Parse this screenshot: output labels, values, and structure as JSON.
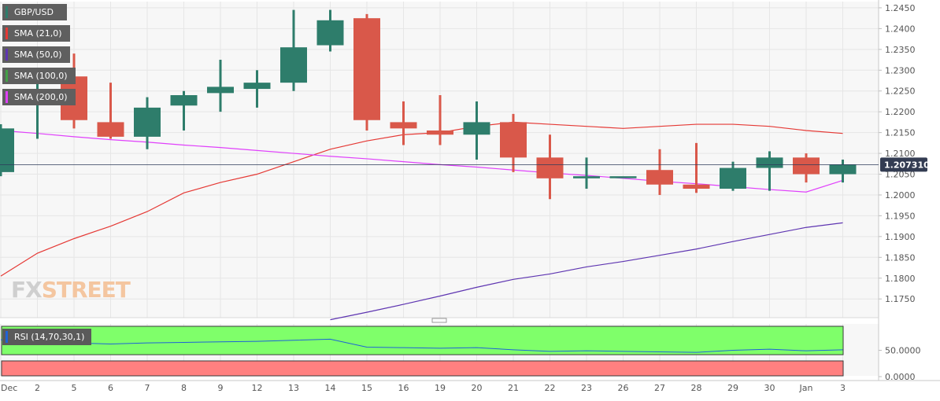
{
  "chart_data": [
    {
      "type": "candlestick",
      "symbol": "GBP/USD",
      "x_labels": [
        "Dec",
        "2",
        "5",
        "6",
        "7",
        "8",
        "9",
        "12",
        "13",
        "14",
        "15",
        "16",
        "19",
        "20",
        "21",
        "22",
        "23",
        "26",
        "27",
        "28",
        "29",
        "30",
        "Jan",
        "3"
      ],
      "candles": [
        {
          "o": 1.2055,
          "h": 1.217,
          "l": 1.2045,
          "c": 1.216
        },
        {
          "o": 1.222,
          "h": 1.227,
          "l": 1.2135,
          "c": 1.224
        },
        {
          "o": 1.2285,
          "h": 1.234,
          "l": 1.216,
          "c": 1.218
        },
        {
          "o": 1.2175,
          "h": 1.227,
          "l": 1.2135,
          "c": 1.214
        },
        {
          "o": 1.214,
          "h": 1.2235,
          "l": 1.211,
          "c": 1.221
        },
        {
          "o": 1.2215,
          "h": 1.225,
          "l": 1.2155,
          "c": 1.224
        },
        {
          "o": 1.2245,
          "h": 1.2325,
          "l": 1.22,
          "c": 1.226
        },
        {
          "o": 1.2255,
          "h": 1.23,
          "l": 1.221,
          "c": 1.227
        },
        {
          "o": 1.227,
          "h": 1.2445,
          "l": 1.225,
          "c": 1.2355
        },
        {
          "o": 1.236,
          "h": 1.2445,
          "l": 1.2345,
          "c": 1.242
        },
        {
          "o": 1.2425,
          "h": 1.2435,
          "l": 1.2155,
          "c": 1.218
        },
        {
          "o": 1.2175,
          "h": 1.2225,
          "l": 1.212,
          "c": 1.216
        },
        {
          "o": 1.2155,
          "h": 1.224,
          "l": 1.212,
          "c": 1.2145
        },
        {
          "o": 1.2145,
          "h": 1.2225,
          "l": 1.2085,
          "c": 1.2175
        },
        {
          "o": 1.2175,
          "h": 1.2195,
          "l": 1.2055,
          "c": 1.209
        },
        {
          "o": 1.209,
          "h": 1.2145,
          "l": 1.199,
          "c": 1.204
        },
        {
          "o": 1.204,
          "h": 1.209,
          "l": 1.2015,
          "c": 1.2045
        },
        {
          "o": 1.2045,
          "h": 1.2045,
          "l": 1.2045,
          "c": 1.2045
        },
        {
          "o": 1.206,
          "h": 1.211,
          "l": 1.2,
          "c": 1.2025
        },
        {
          "o": 1.2025,
          "h": 1.2125,
          "l": 1.2005,
          "c": 1.2015
        },
        {
          "o": 1.2015,
          "h": 1.208,
          "l": 1.201,
          "c": 1.2065
        },
        {
          "o": 1.2065,
          "h": 1.2105,
          "l": 1.201,
          "c": 1.209
        },
        {
          "o": 1.209,
          "h": 1.21,
          "l": 1.203,
          "c": 1.205
        },
        {
          "o": 1.205,
          "h": 1.2085,
          "l": 1.203,
          "c": 1.2073
        }
      ],
      "series": [
        {
          "name": "SMA (21,0)",
          "color": "#e53935",
          "values": [
            1.1805,
            1.186,
            1.1895,
            1.1925,
            1.196,
            1.2005,
            1.203,
            1.205,
            1.208,
            1.211,
            1.213,
            1.2145,
            1.215,
            1.2165,
            1.2175,
            1.217,
            1.2165,
            1.216,
            1.2165,
            1.217,
            1.217,
            1.2165,
            1.2155,
            1.2148
          ]
        },
        {
          "name": "SMA (50,0)",
          "color": "#5e35b1",
          "values": [
            null,
            null,
            null,
            null,
            null,
            null,
            null,
            null,
            null,
            1.17,
            1.1718,
            1.1737,
            1.1757,
            1.1778,
            1.1797,
            1.181,
            1.1827,
            1.184,
            1.1855,
            1.187,
            1.1888,
            1.1905,
            1.1922,
            1.1933
          ]
        },
        {
          "name": "SMA (100,0)",
          "color": "#43a047",
          "values": []
        },
        {
          "name": "SMA (200,0)",
          "color": "#e040fb",
          "values": [
            1.2155,
            1.2148,
            1.214,
            1.2133,
            1.2127,
            1.212,
            1.2114,
            1.2107,
            1.21,
            1.2093,
            1.2087,
            1.208,
            1.2073,
            1.2067,
            1.206,
            1.2053,
            1.2047,
            1.204,
            1.2033,
            1.2027,
            1.202,
            1.2013,
            1.2007,
            1.2035
          ]
        }
      ],
      "current_price": 1.2073,
      "current_price_label": "1.207310",
      "y_ticks": [
        "1.2450",
        "1.2400",
        "1.2350",
        "1.2300",
        "1.2250",
        "1.2200",
        "1.2150",
        "1.2100",
        "1.2050",
        "1.2000",
        "1.1950",
        "1.1900",
        "1.1850",
        "1.1800",
        "1.1750"
      ],
      "ylim": [
        1.1705,
        1.2465
      ],
      "bull_color": "#2e7d6b",
      "bear_color": "#d9584a",
      "grid": true
    },
    {
      "type": "line",
      "name": "RSI (14,70,30,1)",
      "color": "#1e63d6",
      "values": [
        70,
        67,
        64,
        62,
        64,
        65,
        66,
        67,
        69,
        71,
        56,
        55,
        54,
        55,
        51,
        48,
        49,
        48,
        47,
        46,
        50,
        52,
        49,
        51
      ],
      "overbought": 70,
      "oversold": 30,
      "y_ticks": [
        "50.0000",
        "0.0000"
      ],
      "ylim": [
        0,
        100
      ],
      "overbought_color": "#7fff6a",
      "oversold_color": "#ff8080"
    }
  ],
  "legend": {
    "symbol": "GBP/USD",
    "items": [
      {
        "label": "SMA (21,0)",
        "color": "#e53935"
      },
      {
        "label": "SMA (50,0)",
        "color": "#5e35b1"
      },
      {
        "label": "SMA (100,0)",
        "color": "#43a047"
      },
      {
        "label": "SMA (200,0)",
        "color": "#e040fb"
      }
    ],
    "rsi_label": "RSI (14,70,30,1)"
  },
  "logo": {
    "part1": "FX",
    "part2": "STREET"
  }
}
